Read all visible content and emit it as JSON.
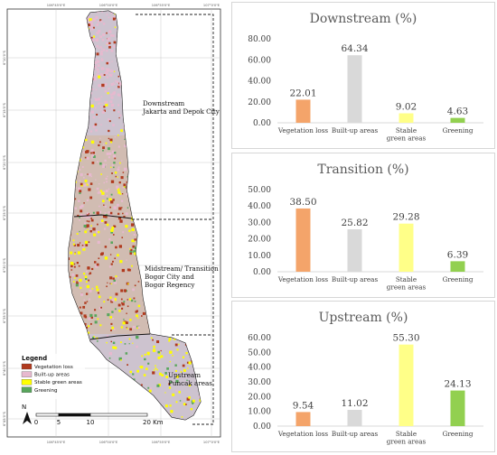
{
  "map": {
    "regions": [
      {
        "name": "Downstream",
        "cities": "Jakarta and Depok City"
      },
      {
        "name": "Midstream/ Transition",
        "cities": "Bogor City and Bogor Regency"
      },
      {
        "name": "Upstream",
        "cities": "Puncak areas"
      }
    ],
    "legend": {
      "title": "Legend",
      "items": [
        {
          "label": "Vegetation loss",
          "color": "#b03a1e"
        },
        {
          "label": "Built-up areas",
          "color": "#e7b9cf"
        },
        {
          "label": "Stable green areas",
          "color": "#ffff00"
        },
        {
          "label": "Greening",
          "color": "#58a65c"
        }
      ]
    },
    "north_label": "N",
    "scale": {
      "ticks": [
        "0",
        "5",
        "10",
        "20 Km"
      ]
    },
    "coords": {
      "top": [
        "106°45'0\"E",
        "106°50'0\"E",
        "106°55'0\"E",
        "107°0'0\"E"
      ],
      "bottom": [
        "106°45'0\"E",
        "106°50'0\"E",
        "106°55'0\"E",
        "107°0'0\"E"
      ],
      "left": [
        "6°10'0\"S",
        "6°15'0\"S",
        "6°20'0\"S",
        "6°25'0\"S",
        "6°30'0\"S",
        "6°35'0\"S",
        "6°40'0\"S",
        "6°45'0\"S"
      ]
    }
  },
  "chart_data": [
    {
      "type": "bar",
      "title": "Downstream (%)",
      "categories": [
        "Vegetation loss",
        "Built-up areas",
        "Stable green areas",
        "Greening"
      ],
      "values": [
        22.01,
        64.34,
        9.02,
        4.63
      ],
      "value_labels": [
        "22.01",
        "64.34",
        "9.02",
        "4.63"
      ],
      "colors": [
        "#f4a46a",
        "#d9d9d9",
        "#ffff88",
        "#92d050"
      ],
      "ylim": [
        0,
        80
      ],
      "yticks": [
        "0.00",
        "20.00",
        "40.00",
        "60.00",
        "80.00"
      ]
    },
    {
      "type": "bar",
      "title": "Transition (%)",
      "categories": [
        "Vegetation loss",
        "Built-up areas",
        "Stable green areas",
        "Greening"
      ],
      "values": [
        38.5,
        25.82,
        29.28,
        6.39
      ],
      "value_labels": [
        "38.50",
        "25.82",
        "29.28",
        "6.39"
      ],
      "colors": [
        "#f4a46a",
        "#d9d9d9",
        "#ffff88",
        "#92d050"
      ],
      "ylim": [
        0,
        50
      ],
      "yticks": [
        "0.00",
        "10.00",
        "20.00",
        "30.00",
        "40.00",
        "50.00"
      ]
    },
    {
      "type": "bar",
      "title": "Upstream (%)",
      "categories": [
        "Vegetation loss",
        "Built-up areas",
        "Stable green areas",
        "Greening"
      ],
      "values": [
        9.54,
        11.02,
        55.3,
        24.13
      ],
      "value_labels": [
        "9.54",
        "11.02",
        "55.30",
        "24.13"
      ],
      "colors": [
        "#f4a46a",
        "#d9d9d9",
        "#ffff88",
        "#92d050"
      ],
      "ylim": [
        0,
        60
      ],
      "yticks": [
        "0.00",
        "10.00",
        "20.00",
        "30.00",
        "40.00",
        "50.00",
        "60.00"
      ]
    }
  ]
}
